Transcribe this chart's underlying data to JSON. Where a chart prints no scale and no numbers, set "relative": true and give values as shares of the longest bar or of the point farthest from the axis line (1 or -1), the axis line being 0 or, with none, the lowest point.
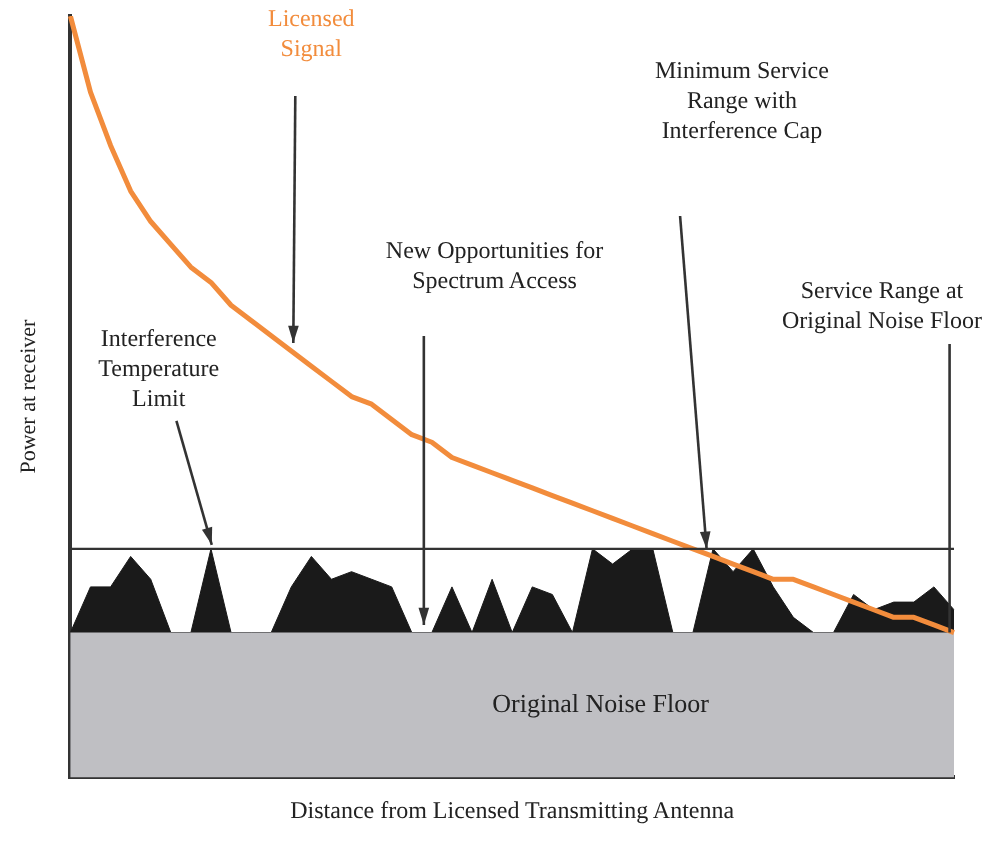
{
  "chart_data": {
    "type": "line",
    "relative": true,
    "xlabel": "Distance from Licensed Transmitting Antenna",
    "ylabel": "Power at receiver",
    "tick_labels": false,
    "grid": false,
    "legend": false,
    "categories": [
      null,
      null,
      null,
      null,
      null,
      null,
      null,
      null,
      null,
      null,
      null,
      null,
      null,
      null,
      null,
      null,
      null,
      null,
      null,
      null,
      null,
      null,
      null,
      null,
      null,
      null,
      null,
      null,
      null,
      null,
      null,
      null,
      null,
      null,
      null,
      null,
      null,
      null,
      null,
      null,
      null,
      null,
      null,
      null,
      null
    ],
    "series": [
      {
        "type": "area",
        "color": "#1a1a1a",
        "values": [
          0.19,
          0.25,
          0.25,
          0.29,
          0.26,
          0.19,
          0.19,
          0.3,
          0.19,
          0.19,
          0.19,
          0.25,
          0.29,
          0.26,
          0.27,
          0.26,
          0.25,
          0.19,
          0.19,
          0.25,
          0.19,
          0.26,
          0.19,
          0.25,
          0.24,
          0.19,
          0.3,
          0.28,
          0.3,
          0.3,
          0.19,
          0.19,
          0.3,
          0.27,
          0.3,
          0.25,
          0.21,
          0.19,
          0.19,
          0.24,
          0.22,
          0.23,
          0.23,
          0.25,
          0.22
        ]
      },
      {
        "name": "Licensed Signal",
        "color": "#f28c3c",
        "values": [
          1.0,
          0.9,
          0.83,
          0.77,
          0.73,
          0.7,
          0.67,
          0.65,
          0.62,
          0.6,
          0.58,
          0.56,
          0.54,
          0.52,
          0.5,
          0.49,
          0.47,
          0.45,
          0.44,
          0.42,
          0.41,
          0.4,
          0.39,
          0.38,
          0.37,
          0.36,
          0.35,
          0.34,
          0.33,
          0.32,
          0.31,
          0.3,
          0.29,
          0.28,
          0.27,
          0.26,
          0.26,
          0.25,
          0.24,
          0.23,
          0.22,
          0.21,
          0.21,
          0.2,
          0.19
        ]
      }
    ],
    "ref_lines": [
      {
        "axis": "y",
        "value": 0.3,
        "label": "Interference Temperature Limit",
        "color": "#333333"
      }
    ],
    "bands": [
      {
        "axis": "y",
        "from": 0,
        "to": 0.19,
        "label": "Original Noise Floor",
        "color": "#bfbfc3"
      }
    ],
    "annotations": [
      "New Opportunities for Spectrum Access",
      "Minimum Service Range with Interference Cap",
      "Service Range at Original Noise Floor"
    ]
  }
}
